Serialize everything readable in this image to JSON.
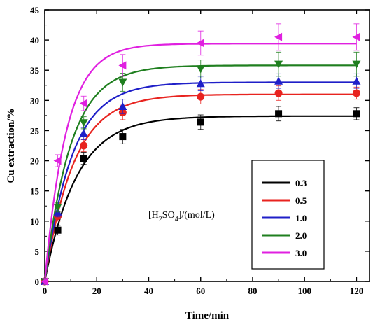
{
  "chart_data": {
    "type": "scatter",
    "title": "",
    "xlabel": "Time/min",
    "ylabel": "Cu extraction/%",
    "xlim": [
      0,
      125
    ],
    "ylim": [
      0,
      45
    ],
    "xticks": [
      0,
      20,
      40,
      60,
      80,
      100,
      120
    ],
    "yticks": [
      0,
      5,
      10,
      15,
      20,
      25,
      30,
      35,
      40,
      45
    ],
    "grid": false,
    "legend_position": "bottom-right",
    "annotation": {
      "prefix": "[H",
      "sub1": "2",
      "mid": "SO",
      "sub2": "4",
      "suffix": "]/(mol/L)"
    },
    "x": [
      0,
      5,
      15,
      30,
      60,
      90,
      120
    ],
    "series": [
      {
        "name": "0.3",
        "color": "#000000",
        "marker": "square",
        "values": [
          0,
          8.5,
          20.4,
          24.0,
          26.4,
          27.8,
          27.8
        ],
        "errors": [
          0.5,
          0.8,
          1.0,
          1.2,
          1.2,
          1.2,
          1.0
        ],
        "fit_plateau": 27.4,
        "fit_k": 0.082
      },
      {
        "name": "0.5",
        "color": "#e8231f",
        "marker": "circle",
        "values": [
          0,
          10.8,
          22.5,
          28.0,
          30.6,
          31.2,
          31.2
        ],
        "errors": [
          0.5,
          0.8,
          1.0,
          1.2,
          1.2,
          1.2,
          1.0
        ],
        "fit_plateau": 31.0,
        "fit_k": 0.09
      },
      {
        "name": "1.0",
        "color": "#1f1fc8",
        "marker": "triangle-up",
        "values": [
          0,
          11.5,
          24.5,
          29.0,
          32.8,
          33.2,
          33.2
        ],
        "errors": [
          0.5,
          0.8,
          1.0,
          1.2,
          1.2,
          1.2,
          1.2
        ],
        "fit_plateau": 33.0,
        "fit_k": 0.095
      },
      {
        "name": "2.0",
        "color": "#1f7f1f",
        "marker": "triangle-down",
        "values": [
          0,
          12.3,
          26.3,
          33.0,
          35.2,
          36.0,
          36.0
        ],
        "errors": [
          0.5,
          0.8,
          1.0,
          1.5,
          1.5,
          2.0,
          2.0
        ],
        "fit_plateau": 35.8,
        "fit_k": 0.1
      },
      {
        "name": "3.0",
        "color": "#e020e0",
        "marker": "triangle-left",
        "values": [
          0,
          20.0,
          29.5,
          35.8,
          39.5,
          40.5,
          40.5
        ],
        "errors": [
          0.5,
          1.0,
          1.2,
          1.8,
          2.0,
          2.2,
          2.2
        ],
        "fit_plateau": 39.4,
        "fit_k": 0.12
      }
    ]
  }
}
